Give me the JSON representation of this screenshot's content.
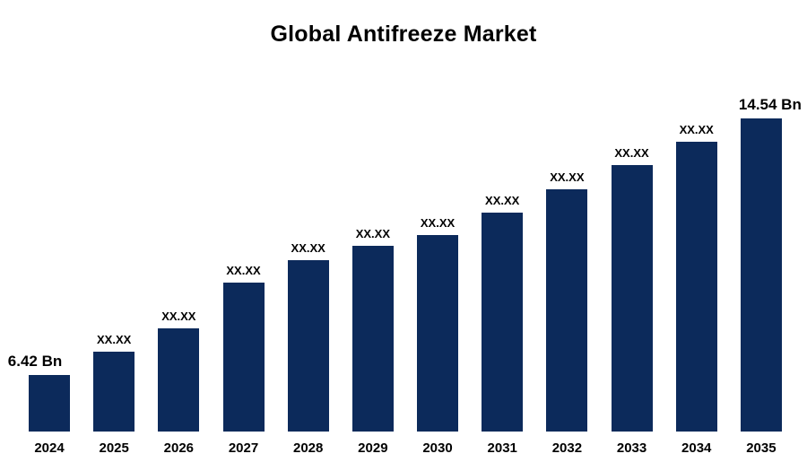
{
  "chart_data": {
    "type": "bar",
    "title": "Global Antifreeze Market",
    "categories": [
      "2024",
      "2025",
      "2026",
      "2027",
      "2028",
      "2029",
      "2030",
      "2031",
      "2032",
      "2033",
      "2034",
      "2035"
    ],
    "values": [
      6.42,
      7.15,
      7.9,
      9.35,
      10.05,
      10.5,
      10.85,
      11.55,
      12.3,
      13.05,
      13.8,
      14.54
    ],
    "bar_labels": [
      "6.42 Bn",
      "XX.XX",
      "XX.XX",
      "XX.XX",
      "XX.XX",
      "XX.XX",
      "XX.XX",
      "XX.XX",
      "XX.XX",
      "XX.XX",
      "XX.XX",
      "14.54 Bn"
    ],
    "unit": "Bn",
    "first_value_label": "6.42 Bn",
    "last_value_label": "14.54 Bn",
    "bar_color": "#0C2A5B",
    "text_color": "#000000",
    "background_color": "#FFFFFF",
    "ylim": [
      4.64,
      14.9
    ],
    "grid": false,
    "legend": false,
    "xlabel": "",
    "ylabel": ""
  }
}
